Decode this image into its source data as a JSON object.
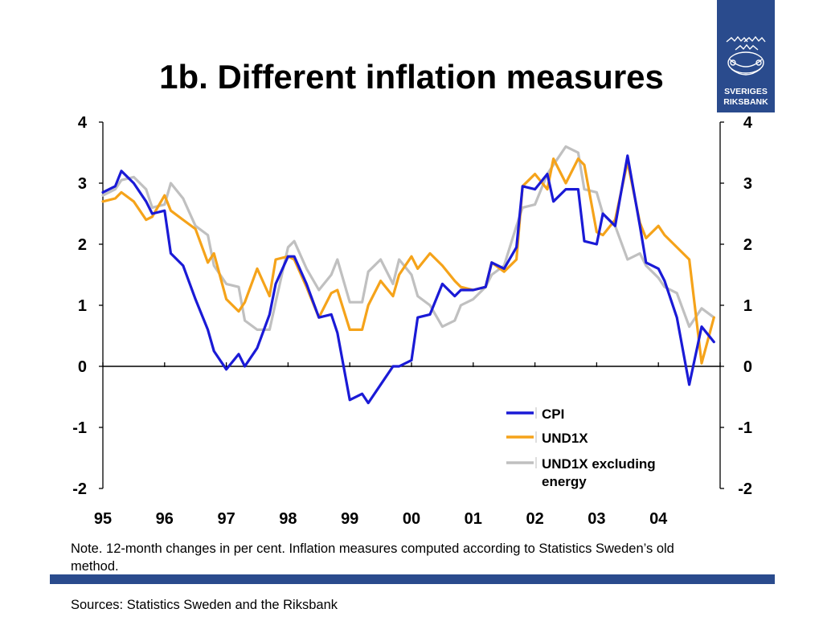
{
  "slide": {
    "title": "1b. Different inflation measures",
    "note": "Note. 12-month changes in per cent. Inflation measures computed according to Statistics Sweden’s old method.",
    "sources": "Sources: Statistics Sweden and the Riksbank",
    "logo": {
      "line1": "SVERIGES",
      "line2": "RIKSBANK",
      "icon": "riksbank-crest-icon",
      "color": "#2a4b8d"
    }
  },
  "chart_data": {
    "type": "line",
    "title": "1b. Different inflation measures",
    "xlabel": "",
    "ylabel": "",
    "ylim": [
      -2,
      4
    ],
    "yticks": [
      "-2",
      "-1",
      "0",
      "1",
      "2",
      "3",
      "4"
    ],
    "xlim": [
      1995,
      2005
    ],
    "xticks": [
      "95",
      "96",
      "97",
      "98",
      "99",
      "00",
      "01",
      "02",
      "03",
      "04"
    ],
    "grid": false,
    "legend_position": "bottom-right",
    "series": [
      {
        "name": "CPI",
        "color": "#1a1ad6",
        "x": [
          1995.0,
          1995.2,
          1995.3,
          1995.5,
          1995.7,
          1995.8,
          1996.0,
          1996.1,
          1996.3,
          1996.5,
          1996.7,
          1996.8,
          1997.0,
          1997.2,
          1997.3,
          1997.5,
          1997.7,
          1997.8,
          1998.0,
          1998.1,
          1998.3,
          1998.5,
          1998.7,
          1998.8,
          1999.0,
          1999.2,
          1999.3,
          1999.5,
          1999.7,
          1999.8,
          2000.0,
          2000.1,
          2000.3,
          2000.5,
          2000.7,
          2000.8,
          2001.0,
          2001.2,
          2001.3,
          2001.5,
          2001.7,
          2001.8,
          2002.0,
          2002.2,
          2002.3,
          2002.5,
          2002.7,
          2002.8,
          2003.0,
          2003.1,
          2003.3,
          2003.5,
          2003.7,
          2003.8,
          2004.0,
          2004.1,
          2004.3,
          2004.5,
          2004.7,
          2004.9
        ],
        "values": [
          2.85,
          2.95,
          3.2,
          3.0,
          2.7,
          2.5,
          2.55,
          1.85,
          1.65,
          1.1,
          0.6,
          0.25,
          -0.05,
          0.2,
          0.0,
          0.3,
          0.85,
          1.35,
          1.8,
          1.8,
          1.35,
          0.8,
          0.85,
          0.55,
          -0.55,
          -0.45,
          -0.6,
          -0.3,
          0.0,
          0.0,
          0.1,
          0.8,
          0.85,
          1.35,
          1.15,
          1.25,
          1.25,
          1.3,
          1.7,
          1.6,
          1.95,
          2.95,
          2.9,
          3.15,
          2.7,
          2.9,
          2.9,
          2.05,
          2.0,
          2.5,
          2.3,
          3.45,
          2.3,
          1.7,
          1.6,
          1.4,
          0.8,
          -0.3,
          0.65,
          0.4
        ]
      },
      {
        "name": "UND1X",
        "color": "#f5a31a",
        "x": [
          1995.0,
          1995.2,
          1995.3,
          1995.5,
          1995.7,
          1995.8,
          1996.0,
          1996.1,
          1996.3,
          1996.5,
          1996.7,
          1996.8,
          1997.0,
          1997.2,
          1997.3,
          1997.5,
          1997.7,
          1997.8,
          1998.0,
          1998.1,
          1998.3,
          1998.5,
          1998.7,
          1998.8,
          1999.0,
          1999.2,
          1999.3,
          1999.5,
          1999.7,
          1999.8,
          2000.0,
          2000.1,
          2000.3,
          2000.5,
          2000.7,
          2000.8,
          2001.0,
          2001.2,
          2001.3,
          2001.5,
          2001.7,
          2001.8,
          2002.0,
          2002.2,
          2002.3,
          2002.5,
          2002.7,
          2002.8,
          2003.0,
          2003.1,
          2003.3,
          2003.5,
          2003.7,
          2003.8,
          2004.0,
          2004.1,
          2004.3,
          2004.5,
          2004.7,
          2004.9
        ],
        "values": [
          2.7,
          2.75,
          2.85,
          2.7,
          2.4,
          2.45,
          2.8,
          2.55,
          2.4,
          2.25,
          1.7,
          1.85,
          1.1,
          0.9,
          1.05,
          1.6,
          1.15,
          1.75,
          1.8,
          1.75,
          1.3,
          0.8,
          1.2,
          1.25,
          0.6,
          0.6,
          1.0,
          1.4,
          1.15,
          1.5,
          1.8,
          1.6,
          1.85,
          1.65,
          1.4,
          1.3,
          1.25,
          1.3,
          1.7,
          1.55,
          1.75,
          2.95,
          3.15,
          2.9,
          3.4,
          3.0,
          3.4,
          3.3,
          2.2,
          2.15,
          2.4,
          3.35,
          2.35,
          2.1,
          2.3,
          2.15,
          1.95,
          1.75,
          0.05,
          0.8
        ]
      },
      {
        "name": "UND1X excluding energy",
        "color": "#c0c0c0",
        "x": [
          1995.0,
          1995.2,
          1995.3,
          1995.5,
          1995.7,
          1995.8,
          1996.0,
          1996.1,
          1996.3,
          1996.5,
          1996.7,
          1996.8,
          1997.0,
          1997.2,
          1997.3,
          1997.5,
          1997.7,
          1997.8,
          1998.0,
          1998.1,
          1998.3,
          1998.5,
          1998.7,
          1998.8,
          1999.0,
          1999.2,
          1999.3,
          1999.5,
          1999.7,
          1999.8,
          2000.0,
          2000.1,
          2000.3,
          2000.5,
          2000.7,
          2000.8,
          2001.0,
          2001.2,
          2001.3,
          2001.5,
          2001.7,
          2001.8,
          2002.0,
          2002.2,
          2002.3,
          2002.5,
          2002.7,
          2002.8,
          2003.0,
          2003.1,
          2003.3,
          2003.5,
          2003.7,
          2003.8,
          2004.0,
          2004.1,
          2004.3,
          2004.5,
          2004.7,
          2004.9
        ],
        "values": [
          2.8,
          2.9,
          3.05,
          3.1,
          2.9,
          2.6,
          2.65,
          3.0,
          2.75,
          2.3,
          2.15,
          1.65,
          1.35,
          1.3,
          0.75,
          0.6,
          0.6,
          1.05,
          1.95,
          2.05,
          1.6,
          1.25,
          1.5,
          1.75,
          1.05,
          1.05,
          1.55,
          1.75,
          1.35,
          1.75,
          1.5,
          1.15,
          1.0,
          0.65,
          0.75,
          1.0,
          1.1,
          1.3,
          1.5,
          1.65,
          2.3,
          2.6,
          2.65,
          3.15,
          3.3,
          3.6,
          3.5,
          2.9,
          2.85,
          2.5,
          2.3,
          1.75,
          1.85,
          1.65,
          1.45,
          1.3,
          1.2,
          0.65,
          0.95,
          0.8
        ]
      }
    ]
  }
}
